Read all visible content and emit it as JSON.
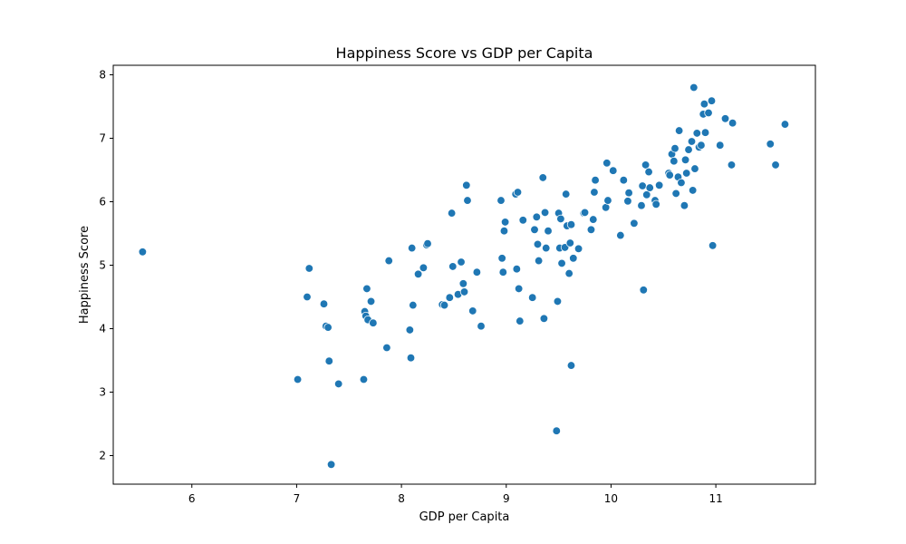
{
  "chart_data": {
    "type": "scatter",
    "title": "Happiness Score vs GDP per Capita",
    "xlabel": "GDP per Capita",
    "ylabel": "Happiness Score",
    "xlim": [
      5.25,
      11.95
    ],
    "ylim": [
      1.55,
      8.15
    ],
    "xticks": [
      6,
      7,
      8,
      9,
      10,
      11
    ],
    "yticks": [
      2,
      3,
      4,
      5,
      6,
      7,
      8
    ],
    "grid": false,
    "marker_color": "#1f77b4",
    "marker_edge_color": "#ffffff",
    "points": [
      [
        5.53,
        5.21
      ],
      [
        7.01,
        3.2
      ],
      [
        7.1,
        4.5
      ],
      [
        7.12,
        4.95
      ],
      [
        7.26,
        4.39
      ],
      [
        7.28,
        4.04
      ],
      [
        7.3,
        4.02
      ],
      [
        7.31,
        3.49
      ],
      [
        7.33,
        1.86
      ],
      [
        7.4,
        3.13
      ],
      [
        7.64,
        3.2
      ],
      [
        7.65,
        4.27
      ],
      [
        7.66,
        4.2
      ],
      [
        7.67,
        4.63
      ],
      [
        7.68,
        4.14
      ],
      [
        7.71,
        4.43
      ],
      [
        7.73,
        4.09
      ],
      [
        7.86,
        3.7
      ],
      [
        7.88,
        5.07
      ],
      [
        8.08,
        3.98
      ],
      [
        8.09,
        3.54
      ],
      [
        8.1,
        5.27
      ],
      [
        8.11,
        4.37
      ],
      [
        8.16,
        4.86
      ],
      [
        8.21,
        4.96
      ],
      [
        8.24,
        5.32
      ],
      [
        8.25,
        5.34
      ],
      [
        8.39,
        4.38
      ],
      [
        8.41,
        4.37
      ],
      [
        8.46,
        4.49
      ],
      [
        8.48,
        5.82
      ],
      [
        8.49,
        4.98
      ],
      [
        8.54,
        4.54
      ],
      [
        8.57,
        5.05
      ],
      [
        8.59,
        4.71
      ],
      [
        8.6,
        4.58
      ],
      [
        8.62,
        6.26
      ],
      [
        8.63,
        6.02
      ],
      [
        8.68,
        4.28
      ],
      [
        8.72,
        4.89
      ],
      [
        8.76,
        4.04
      ],
      [
        8.95,
        6.02
      ],
      [
        8.96,
        5.11
      ],
      [
        8.97,
        4.89
      ],
      [
        8.98,
        5.54
      ],
      [
        8.99,
        5.68
      ],
      [
        9.09,
        6.12
      ],
      [
        9.1,
        4.94
      ],
      [
        9.11,
        6.15
      ],
      [
        9.12,
        4.63
      ],
      [
        9.13,
        4.12
      ],
      [
        9.16,
        5.71
      ],
      [
        9.25,
        4.49
      ],
      [
        9.27,
        5.56
      ],
      [
        9.29,
        5.76
      ],
      [
        9.3,
        5.33
      ],
      [
        9.31,
        5.07
      ],
      [
        9.35,
        6.38
      ],
      [
        9.36,
        4.16
      ],
      [
        9.37,
        5.83
      ],
      [
        9.38,
        5.27
      ],
      [
        9.4,
        5.54
      ],
      [
        9.48,
        2.39
      ],
      [
        9.49,
        4.43
      ],
      [
        9.5,
        5.82
      ],
      [
        9.51,
        5.27
      ],
      [
        9.52,
        5.73
      ],
      [
        9.53,
        5.03
      ],
      [
        9.56,
        5.28
      ],
      [
        9.57,
        6.12
      ],
      [
        9.58,
        5.62
      ],
      [
        9.6,
        4.87
      ],
      [
        9.61,
        5.35
      ],
      [
        9.62,
        3.42
      ],
      [
        9.62,
        5.64
      ],
      [
        9.64,
        5.11
      ],
      [
        9.69,
        5.26
      ],
      [
        9.74,
        5.82
      ],
      [
        9.75,
        5.83
      ],
      [
        9.81,
        5.56
      ],
      [
        9.83,
        5.72
      ],
      [
        9.84,
        6.15
      ],
      [
        9.85,
        6.34
      ],
      [
        9.95,
        5.91
      ],
      [
        9.96,
        6.61
      ],
      [
        9.97,
        6.02
      ],
      [
        10.02,
        6.49
      ],
      [
        10.09,
        5.47
      ],
      [
        10.12,
        6.34
      ],
      [
        10.16,
        6.01
      ],
      [
        10.17,
        6.14
      ],
      [
        10.22,
        5.66
      ],
      [
        10.29,
        5.94
      ],
      [
        10.3,
        6.25
      ],
      [
        10.31,
        4.61
      ],
      [
        10.33,
        6.58
      ],
      [
        10.34,
        6.11
      ],
      [
        10.36,
        6.47
      ],
      [
        10.37,
        6.22
      ],
      [
        10.42,
        6.02
      ],
      [
        10.43,
        5.96
      ],
      [
        10.46,
        6.26
      ],
      [
        10.55,
        6.45
      ],
      [
        10.56,
        6.42
      ],
      [
        10.58,
        6.75
      ],
      [
        10.6,
        6.64
      ],
      [
        10.61,
        6.84
      ],
      [
        10.62,
        6.13
      ],
      [
        10.64,
        6.39
      ],
      [
        10.65,
        7.12
      ],
      [
        10.67,
        6.3
      ],
      [
        10.7,
        5.94
      ],
      [
        10.71,
        6.66
      ],
      [
        10.72,
        6.45
      ],
      [
        10.74,
        6.82
      ],
      [
        10.77,
        6.95
      ],
      [
        10.78,
        6.18
      ],
      [
        10.79,
        7.8
      ],
      [
        10.8,
        6.52
      ],
      [
        10.82,
        7.08
      ],
      [
        10.84,
        6.86
      ],
      [
        10.86,
        6.89
      ],
      [
        10.88,
        7.38
      ],
      [
        10.89,
        7.54
      ],
      [
        10.9,
        7.09
      ],
      [
        10.93,
        7.4
      ],
      [
        10.96,
        7.59
      ],
      [
        10.97,
        5.31
      ],
      [
        11.04,
        6.89
      ],
      [
        11.09,
        7.31
      ],
      [
        11.15,
        6.58
      ],
      [
        11.16,
        7.24
      ],
      [
        11.52,
        6.91
      ],
      [
        11.57,
        6.58
      ],
      [
        11.66,
        7.22
      ]
    ]
  }
}
